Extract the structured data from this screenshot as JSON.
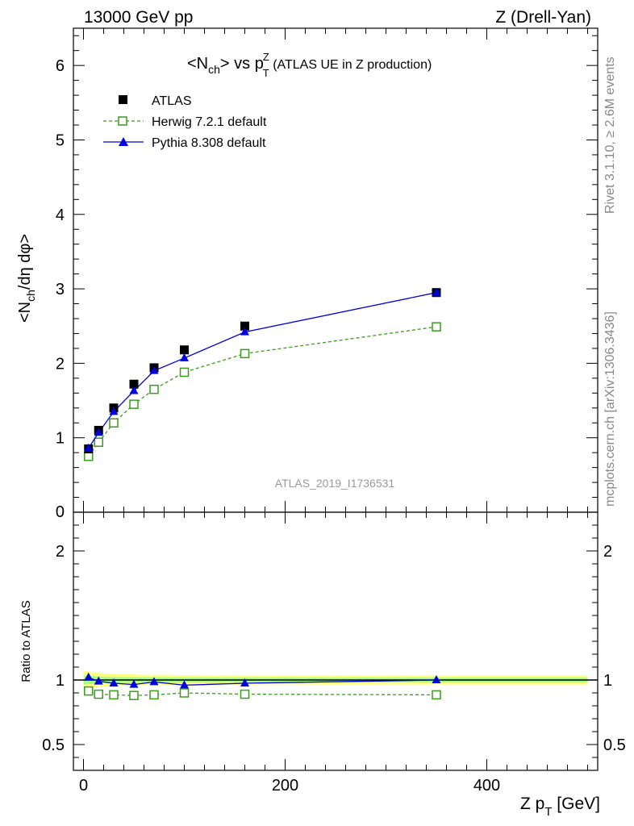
{
  "header": {
    "left": "13000 GeV pp",
    "right": "Z (Drell-Yan)"
  },
  "side_labels": {
    "rivet": "Rivet 3.1.10, ≥ 2.6M events",
    "mcplots": "mcplots.cern.ch [arXiv:1306.3436]"
  },
  "chart_data": {
    "type": "line",
    "title_main": "<N",
    "title_sub1": "ch",
    "title_mid": "> vs p",
    "title_sup": "Z",
    "title_sub2": "T",
    "title_rest": " (ATLAS UE in Z production)",
    "analysis_id": "ATLAS_2019_I1736531",
    "xlabel": "Z p",
    "xlabel_sub": "T",
    "xlabel_unit": " [GeV]",
    "ylabel_top": "<N",
    "ylabel_top_sub": "ch",
    "ylabel_top_rest": "/dη dφ>",
    "ylabel_ratio": "Ratio to ATLAS",
    "xlim": [
      -10,
      510
    ],
    "ylim_top": [
      0,
      6.5
    ],
    "ylim_ratio": [
      0.3,
      2.3
    ],
    "x_ticks": [
      0,
      200,
      400
    ],
    "y_ticks_top": [
      1,
      2,
      3,
      4,
      5,
      6
    ],
    "y_ticks_ratio": [
      0.5,
      1,
      2
    ],
    "y_tick_zero": "0",
    "legend": [
      "ATLAS",
      "Herwig 7.2.1 default",
      "Pythia 8.308 default"
    ],
    "colors": {
      "atlas": "#000000",
      "herwig": "#3c9a1e",
      "pythia": "#0000dd",
      "band_inner": "#8cff8c",
      "band_outer": "#ffff80"
    },
    "x": [
      5,
      15,
      30,
      50,
      70,
      100,
      160,
      350
    ],
    "series": [
      {
        "name": "ATLAS",
        "values": [
          0.85,
          1.1,
          1.4,
          1.72,
          1.94,
          2.18,
          2.5,
          2.95
        ],
        "errors": [
          0.03,
          0.03,
          0.03,
          0.03,
          0.03,
          0.03,
          0.03,
          0.06
        ]
      },
      {
        "name": "Herwig 7.2.1 default",
        "values": [
          0.75,
          0.94,
          1.2,
          1.45,
          1.65,
          1.88,
          2.13,
          2.49
        ]
      },
      {
        "name": "Pythia 8.308 default",
        "values": [
          0.86,
          1.07,
          1.35,
          1.63,
          1.9,
          2.07,
          2.42,
          2.95
        ]
      }
    ],
    "ratio": {
      "herwig": [
        0.915,
        0.89,
        0.885,
        0.88,
        0.885,
        0.9,
        0.89,
        0.885
      ],
      "pythia": [
        1.02,
        0.99,
        0.975,
        0.965,
        0.985,
        0.96,
        0.975,
        1.0
      ],
      "band_x": [
        0,
        10,
        20,
        40,
        60,
        80,
        120,
        500
      ],
      "band_outer": [
        0.07,
        0.06,
        0.05,
        0.045,
        0.04,
        0.04,
        0.035,
        0.035
      ],
      "band_inner": [
        0.035,
        0.03,
        0.025,
        0.022,
        0.02,
        0.02,
        0.018,
        0.018
      ]
    }
  }
}
